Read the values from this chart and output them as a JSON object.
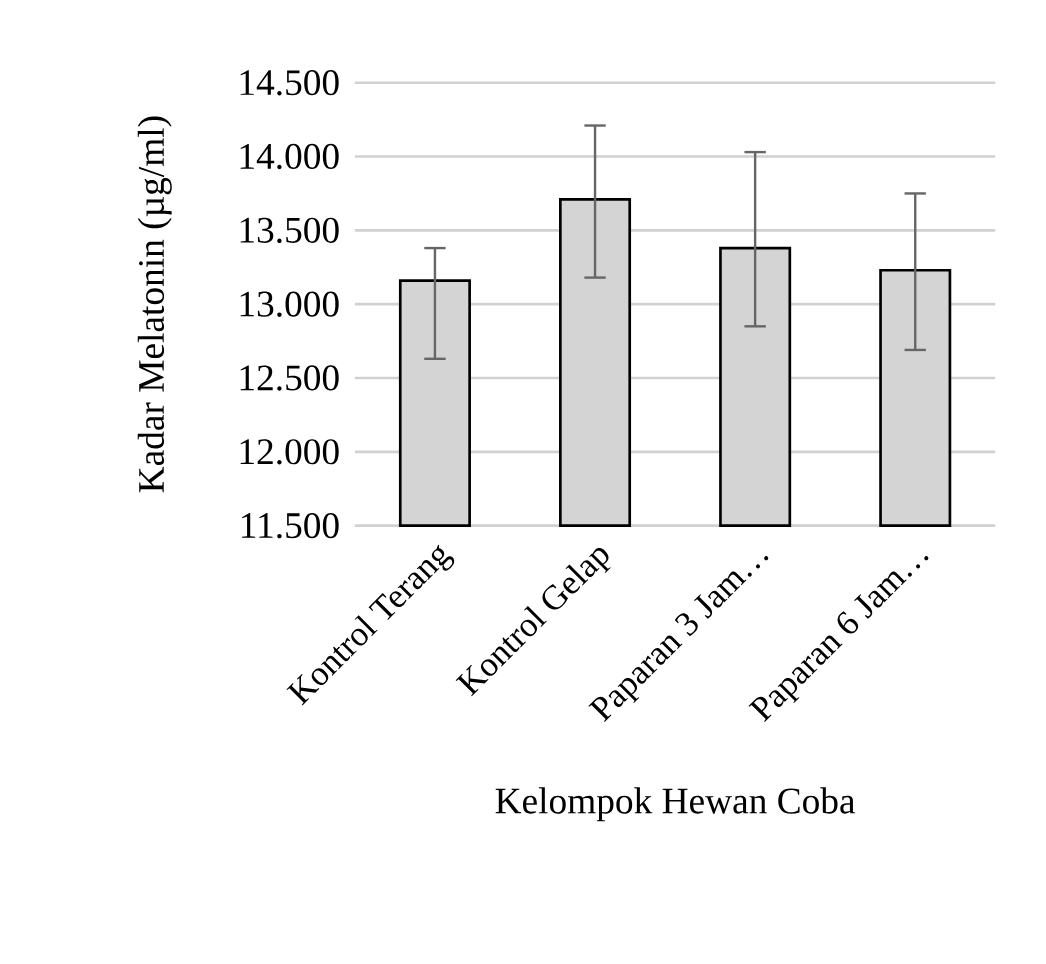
{
  "chart_data": {
    "type": "bar",
    "xlabel": "Kelompok Hewan Coba",
    "ylabel": "Kadar Melatonin (µg/ml)",
    "categories": [
      "Kontrol Terang",
      "Kontrol Gelap",
      "Paparan 3 Jam…",
      "Paparan 6 Jam…"
    ],
    "values": [
      13.16,
      13.71,
      13.38,
      13.23
    ],
    "errors": [
      [
        12.63,
        13.38
      ],
      [
        13.18,
        14.21
      ],
      [
        12.85,
        14.03
      ],
      [
        12.69,
        13.75
      ]
    ],
    "color": "#d4d4d4",
    "ylim": [
      11.5,
      14.5
    ],
    "yticks": [
      {
        "value": 11.5,
        "label": "11.500"
      },
      {
        "value": 12.0,
        "label": "12.000"
      },
      {
        "value": 12.5,
        "label": "12.500"
      },
      {
        "value": 13.0,
        "label": "13.000"
      },
      {
        "value": 13.5,
        "label": "13.500"
      },
      {
        "value": 14.0,
        "label": "14.000"
      },
      {
        "value": 14.5,
        "label": "14.500"
      }
    ],
    "grid": "y"
  }
}
